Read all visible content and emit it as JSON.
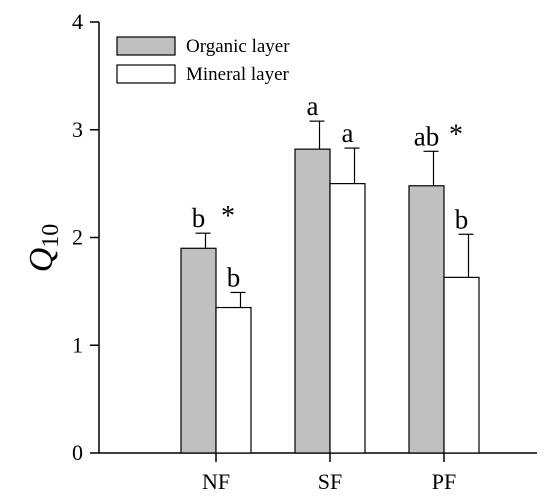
{
  "chart_data": {
    "type": "bar",
    "categories": [
      "NF",
      "SF",
      "PF"
    ],
    "ylabel_main": "Q",
    "ylabel_sub": "10",
    "ylim": [
      0,
      4
    ],
    "yticks": [
      "0",
      "1",
      "2",
      "3",
      "4"
    ],
    "grid": false,
    "legend_position": "top-left",
    "series": [
      {
        "name": "Organic layer",
        "color": "#c0c0c0",
        "values": [
          1.9,
          2.82,
          2.48
        ],
        "errors": [
          0.14,
          0.26,
          0.32
        ],
        "letters": [
          "b",
          "a",
          "ab"
        ]
      },
      {
        "name": "Mineral layer",
        "color": "#ffffff",
        "values": [
          1.35,
          2.5,
          1.63
        ],
        "errors": [
          0.14,
          0.33,
          0.4
        ],
        "letters": [
          "b",
          "a",
          "b"
        ]
      }
    ],
    "significance": [
      "*",
      "",
      "*"
    ]
  }
}
